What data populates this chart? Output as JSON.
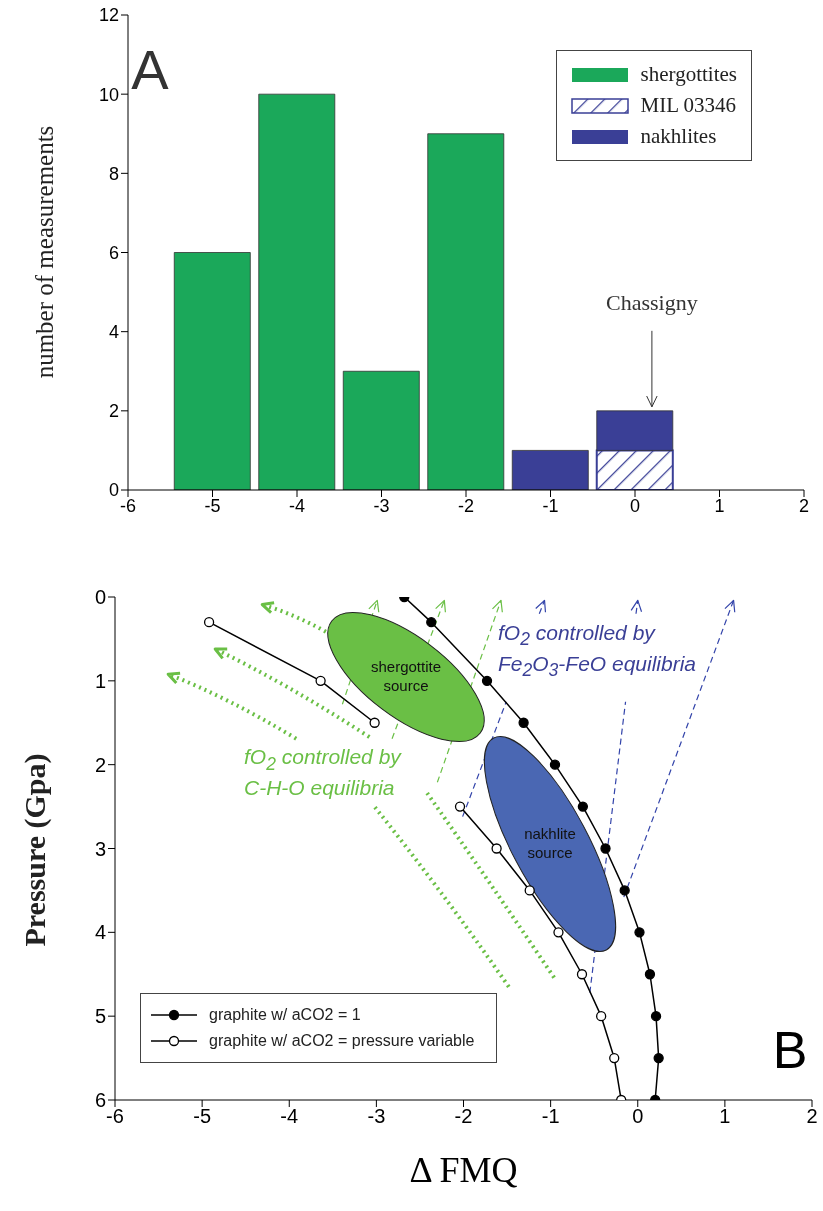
{
  "chart_data": [
    {
      "type": "bar",
      "ylabel": "number of measurements",
      "x": [
        -5,
        -4,
        -3,
        -2,
        -1,
        0
      ],
      "stacked": true,
      "legend": "top right",
      "series": [
        {
          "name": "shergottites",
          "color": "#1ba85a",
          "values": [
            6,
            10,
            3,
            9,
            null,
            null
          ]
        },
        {
          "name": "MIL 03346",
          "color": "#3a3f96",
          "values": [
            null,
            null,
            null,
            null,
            null,
            1
          ]
        },
        {
          "name": "nakhlites",
          "color": "#3a3f96",
          "values": [
            null,
            null,
            null,
            null,
            1,
            1
          ]
        }
      ],
      "xlim": [
        -6,
        2
      ],
      "xticks": [
        -6,
        -5,
        -4,
        -3,
        -2,
        -1,
        0,
        1,
        2
      ],
      "ylim": [
        0,
        12
      ],
      "yticks": [
        0,
        2,
        4,
        6,
        8,
        10,
        12
      ],
      "annotations": [
        "A",
        {
          "text": "Chassigny",
          "x": 0.2,
          "y": 2
        }
      ]
    },
    {
      "type": "line",
      "xlabel": "Δ FMQ",
      "ylabel": "Pressure (Gpa)",
      "legend": "bottom left",
      "marker": "circle",
      "series": [
        {
          "name": "graphite w/ aCO2 = 1",
          "color": "#000000",
          "x": [
            -2.68,
            -2.37,
            -1.73,
            -1.31,
            -0.95,
            -0.63,
            -0.37,
            -0.15,
            0.02,
            0.14,
            0.21,
            0.24,
            0.2
          ],
          "values": [
            0,
            0.3,
            1,
            1.5,
            2,
            2.5,
            3,
            3.5,
            4,
            4.5,
            5,
            5.5,
            6
          ]
        },
        {
          "name": "graphite w/ aCO2 = pressure variable",
          "color": "#000000",
          "x": [
            -4.92,
            -3.64,
            -3.02,
            -2.6,
            -2.04,
            -1.62,
            -1.24,
            -0.91,
            -0.64,
            -0.42,
            -0.27,
            -0.19
          ],
          "values": [
            0.3,
            1,
            1.5,
            null,
            2.5,
            3,
            3.5,
            4,
            4.5,
            5,
            5.5,
            6
          ]
        }
      ],
      "xlim": [
        -6,
        2
      ],
      "xticks": [
        -6,
        -5,
        -4,
        -3,
        -2,
        -1,
        0,
        1,
        2
      ],
      "ylim": [
        6,
        0
      ],
      "yticks": [
        0,
        1,
        2,
        3,
        4,
        5,
        6
      ],
      "annotations": [
        "B",
        "shergottite source",
        "nakhlite source",
        "fO$_{2}$ controlled by C-H-O equilibria",
        {
          "text": "fO$_{2}$ controlled by Fe$_{2}$O$_{3}$-FeO equilibria",
          "x": -1.51,
          "y": 1.25
        }
      ]
    }
  ]
}
